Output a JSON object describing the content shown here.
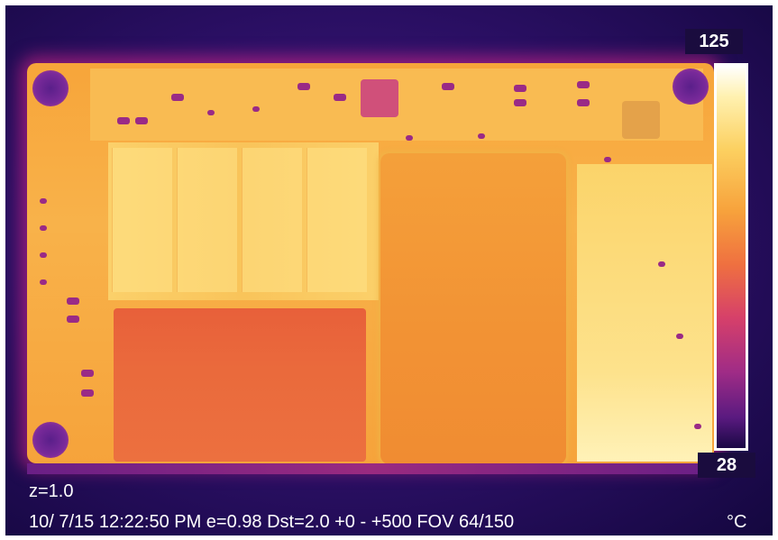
{
  "scale": {
    "max_label": "125",
    "min_label": "28",
    "unit": "°C"
  },
  "hud": {
    "zoom": "z=1.0",
    "status": "10/ 7/15 12:22:50 PM e=0.98 Dst=2.0  +0 -  +500  FOV 64/150"
  },
  "colors": {
    "background_cold": "#2a0f63",
    "board_warm": "#f7a53a",
    "hot": "#fff2b8",
    "component_cold": "#9a2a86"
  }
}
